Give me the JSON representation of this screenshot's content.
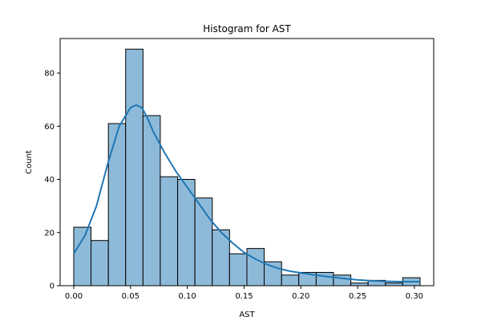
{
  "chart_data": {
    "type": "bar",
    "title": "Histogram for AST",
    "xlabel": "AST",
    "ylabel": "Count",
    "xlim": [
      -0.012,
      0.317
    ],
    "ylim": [
      0,
      93
    ],
    "x_ticks": [
      0.0,
      0.05,
      0.1,
      0.15,
      0.2,
      0.25,
      0.3
    ],
    "x_tick_labels": [
      "0.00",
      "0.05",
      "0.10",
      "0.15",
      "0.20",
      "0.25",
      "0.30"
    ],
    "y_ticks": [
      0,
      20,
      40,
      60,
      80
    ],
    "y_tick_labels": [
      "0",
      "20",
      "40",
      "60",
      "80"
    ],
    "grid": false,
    "bar_color": "#8ebad9",
    "bar_edge_color": "#000000",
    "bins": [
      {
        "start": 0.0,
        "end": 0.0152,
        "count": 22
      },
      {
        "start": 0.0152,
        "end": 0.0305,
        "count": 17
      },
      {
        "start": 0.0305,
        "end": 0.0457,
        "count": 61
      },
      {
        "start": 0.0457,
        "end": 0.061,
        "count": 89
      },
      {
        "start": 0.061,
        "end": 0.0762,
        "count": 64
      },
      {
        "start": 0.0762,
        "end": 0.0915,
        "count": 41
      },
      {
        "start": 0.0915,
        "end": 0.1067,
        "count": 40
      },
      {
        "start": 0.1067,
        "end": 0.122,
        "count": 33
      },
      {
        "start": 0.122,
        "end": 0.1372,
        "count": 21
      },
      {
        "start": 0.1372,
        "end": 0.1525,
        "count": 12
      },
      {
        "start": 0.1525,
        "end": 0.1677,
        "count": 14
      },
      {
        "start": 0.1677,
        "end": 0.183,
        "count": 9
      },
      {
        "start": 0.183,
        "end": 0.1982,
        "count": 4
      },
      {
        "start": 0.1982,
        "end": 0.2135,
        "count": 5
      },
      {
        "start": 0.2135,
        "end": 0.2287,
        "count": 5
      },
      {
        "start": 0.2287,
        "end": 0.244,
        "count": 4
      },
      {
        "start": 0.244,
        "end": 0.2592,
        "count": 1
      },
      {
        "start": 0.2592,
        "end": 0.2745,
        "count": 2
      },
      {
        "start": 0.2745,
        "end": 0.2897,
        "count": 1
      },
      {
        "start": 0.2897,
        "end": 0.305,
        "count": 3
      }
    ],
    "kde": {
      "color": "#1f77b4",
      "x": [
        0.0,
        0.01,
        0.02,
        0.03,
        0.04,
        0.05,
        0.055,
        0.06,
        0.065,
        0.07,
        0.08,
        0.09,
        0.1,
        0.11,
        0.12,
        0.13,
        0.14,
        0.15,
        0.16,
        0.17,
        0.18,
        0.19,
        0.2,
        0.21,
        0.22,
        0.23,
        0.24,
        0.25,
        0.26,
        0.27,
        0.28,
        0.29,
        0.3,
        0.305
      ],
      "y": [
        12,
        19,
        30,
        46,
        60,
        67,
        68,
        67,
        63,
        58,
        50,
        43,
        37,
        31,
        25,
        20,
        16,
        12.5,
        10,
        8,
        6.5,
        5.5,
        4.8,
        4.2,
        3.6,
        3.1,
        2.6,
        2.2,
        1.9,
        1.7,
        1.6,
        1.5,
        1.5,
        1.5
      ]
    }
  }
}
